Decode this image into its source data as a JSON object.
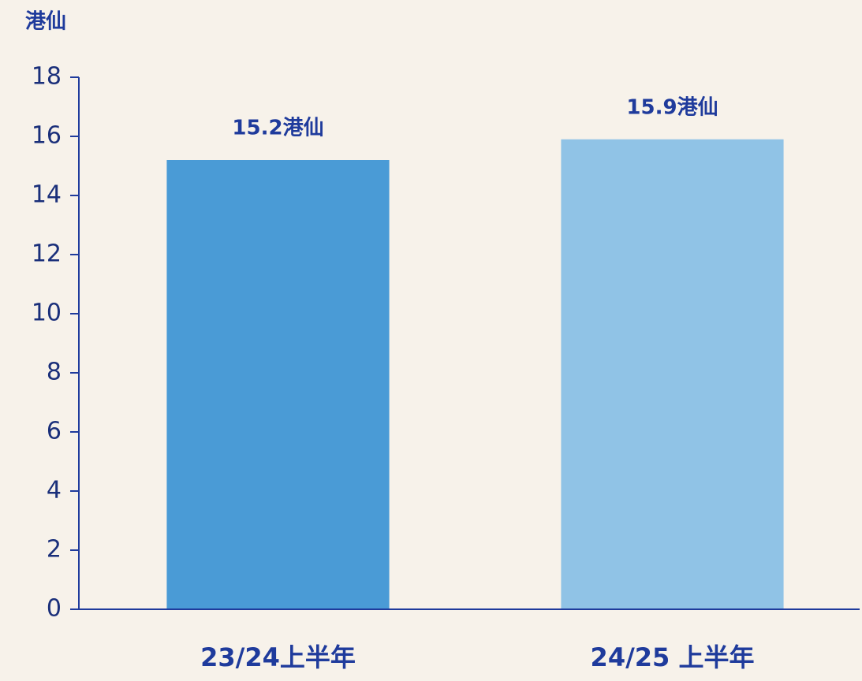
{
  "chart_data": {
    "type": "bar",
    "ylabel": "港仙",
    "categories": [
      "23/24上半年",
      "24/25 上半年"
    ],
    "values": [
      15.2,
      15.9
    ],
    "value_labels": [
      "15.2港仙",
      "15.9港仙"
    ],
    "colors": [
      "#4a9bd6",
      "#90c3e6"
    ],
    "ylim": [
      0,
      18
    ],
    "yticks": [
      0,
      2,
      4,
      6,
      8,
      10,
      12,
      14,
      16,
      18
    ]
  }
}
